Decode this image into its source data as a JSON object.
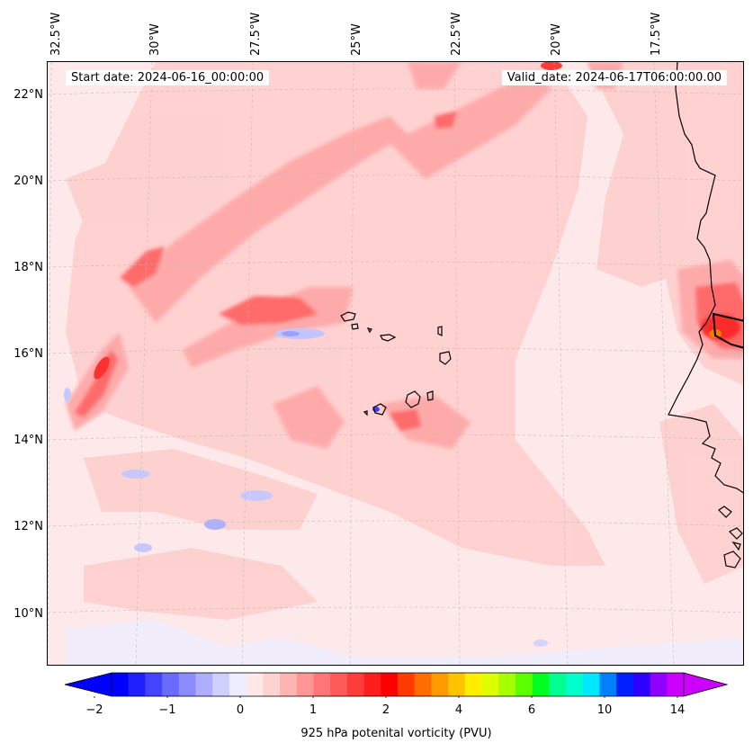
{
  "map": {
    "title_start": "Start date: 2024-06-16_00:00:00",
    "title_valid": "Valid_date: 2024-06-17T06:00:00.00",
    "lon_labels": [
      "32.5°W",
      "30°W",
      "27.5°W",
      "25°W",
      "22.5°W",
      "20°W",
      "17.5°W"
    ],
    "lat_labels": [
      "22°N",
      "20°N",
      "18°N",
      "16°N",
      "14°N",
      "12°N",
      "10°N"
    ],
    "lon_range": [
      -32.5,
      -16.0
    ],
    "lat_range": [
      8.9,
      22.8
    ],
    "variable": "925 hPa potenital vorticity (PVU)"
  },
  "colorbar": {
    "tick_labels": [
      "−2",
      "−1",
      "0",
      "1",
      "2",
      "4",
      "6",
      "10",
      "14"
    ],
    "label": "925 hPa potenital vorticity (PVU)",
    "colors": [
      "#0000ff",
      "#2020ff",
      "#4444ff",
      "#6a6aff",
      "#8c8cff",
      "#aeaeff",
      "#d0d0ff",
      "#ededff",
      "#ffe8e8",
      "#ffd2d2",
      "#ffb4b4",
      "#ff9696",
      "#ff7676",
      "#ff5a5a",
      "#ff3c3c",
      "#ff1e1e",
      "#ff0000",
      "#ff3c00",
      "#ff6c00",
      "#ff9a00",
      "#ffc400",
      "#ffee00",
      "#ddff00",
      "#a6ff00",
      "#5cff00",
      "#00ff20",
      "#00ff90",
      "#00ffcc",
      "#00e8ff",
      "#0080ff",
      "#0020ff",
      "#3000ff",
      "#9000ff",
      "#cc00ff"
    ],
    "under_color": "#0000ff",
    "over_color": "#cc00ff"
  }
}
